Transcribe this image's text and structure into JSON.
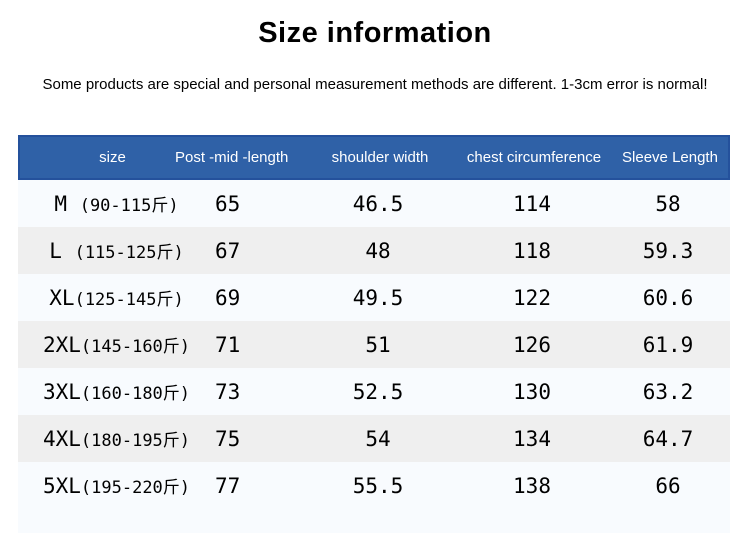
{
  "chart_data": {
    "type": "table",
    "title": "Size information",
    "subtitle": "Some products are special and personal measurement methods are different. 1-3cm error is normal!",
    "columns": [
      "size",
      "Post -mid -length",
      "shoulder width",
      "chest circumference",
      "Sleeve Length"
    ],
    "rows": [
      [
        "M (90-115斤)",
        65,
        46.5,
        114,
        58
      ],
      [
        "L (115-125斤)",
        67,
        48,
        118,
        59.3
      ],
      [
        "XL(125-145斤)",
        69,
        49.5,
        122,
        60.6
      ],
      [
        "2XL(145-160斤)",
        71,
        51,
        126,
        61.9
      ],
      [
        "3XL(160-180斤)",
        73,
        52.5,
        130,
        63.2
      ],
      [
        "4XL(180-195斤)",
        75,
        54,
        134,
        64.7
      ],
      [
        "5XL(195-220斤)",
        77,
        55.5,
        138,
        66
      ]
    ],
    "layout_hints": {
      "striped_rows": [
        1,
        3,
        5
      ],
      "header_position": "top",
      "grid": "off"
    }
  },
  "colors": {
    "page_bg": "#ffffff",
    "header_bg": "#2f61a7",
    "header_border": "#24519c",
    "header_text": "#ffffff",
    "table_bg": "#f8fbfe",
    "stripe": "#efefef",
    "text": "#000000"
  }
}
